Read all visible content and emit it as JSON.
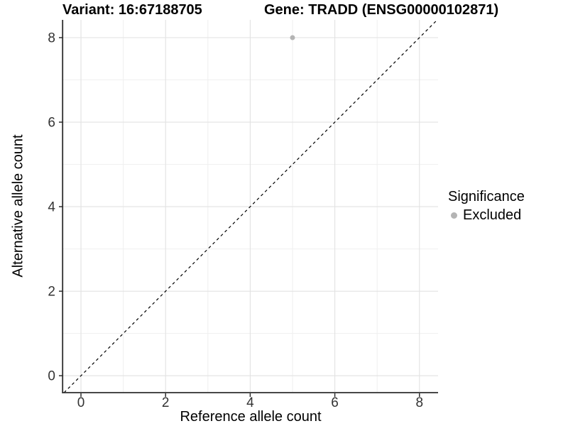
{
  "figure": {
    "variant_title": "Variant: 16:67188705",
    "gene_title": "Gene: TRADD (ENSG00000102871)"
  },
  "axes": {
    "x_title": "Reference allele count",
    "y_title": "Alternative allele count"
  },
  "legend": {
    "title": "Significance",
    "items": [
      {
        "label": "Excluded",
        "color": "#b4b4b4"
      }
    ]
  },
  "chart_data": {
    "type": "scatter",
    "title": "Variant: 16:67188705 / Gene: TRADD (ENSG00000102871)",
    "xlabel": "Reference allele count",
    "ylabel": "Alternative allele count",
    "xlim": [
      -0.42,
      8.44
    ],
    "ylim": [
      -0.4,
      8.42
    ],
    "x_ticks": [
      0,
      2,
      4,
      6,
      8
    ],
    "y_ticks": [
      0,
      2,
      4,
      6,
      8
    ],
    "x_minor_ticks": [
      1,
      3,
      5,
      7
    ],
    "y_minor_ticks": [
      1,
      3,
      5,
      7
    ],
    "grid": "on",
    "legend_position": "right",
    "legend_title": "Significance",
    "series": [
      {
        "name": "Excluded",
        "color": "#b4b4b4",
        "points": [
          {
            "x": 5,
            "y": 8
          }
        ]
      }
    ],
    "reference_line": {
      "kind": "identity",
      "slope": 1,
      "intercept": 0,
      "linetype": "dashed",
      "color": "#000000"
    }
  },
  "style": {
    "background": "#ffffff",
    "grid_major_color": "#e2e2e2",
    "grid_minor_color": "#efefef",
    "axis_line_color": "#2e2e2e",
    "tick_label_color": "#333333",
    "point_color": "#b4b4b4"
  }
}
